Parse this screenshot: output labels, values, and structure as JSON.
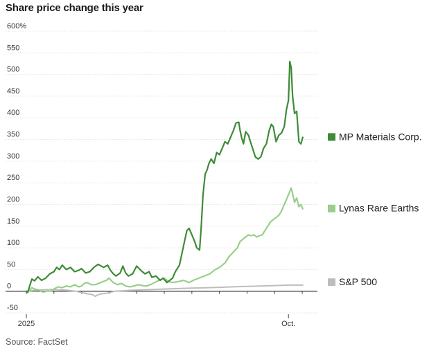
{
  "chart_data": {
    "type": "line",
    "title": "Share price change this year",
    "source": "Source: FactSet",
    "ylabel": "%",
    "ylim": [
      -50,
      600
    ],
    "y_ticks": [
      -50,
      0,
      50,
      100,
      150,
      200,
      250,
      300,
      350,
      400,
      450,
      500,
      550,
      600
    ],
    "y_tick_labels": [
      "-50",
      "0",
      "50",
      "100",
      "150",
      "200",
      "250",
      "300",
      "350",
      "400",
      "450",
      "500",
      "550",
      "600%"
    ],
    "x_unit": "months since Jan 1, 2025",
    "xlim": [
      0,
      10.55
    ],
    "x_ticks": [
      0,
      1,
      2,
      3,
      4,
      5,
      6,
      7,
      8,
      9,
      10
    ],
    "x_tick_labels": [
      {
        "x": 0,
        "label": "2025"
      },
      {
        "x": 9.5,
        "label": "Oct."
      }
    ],
    "series": [
      {
        "name": "MP Materials Corp.",
        "color": "#3d8b37",
        "points": [
          [
            0,
            0
          ],
          [
            0.05,
            -3
          ],
          [
            0.12,
            12
          ],
          [
            0.2,
            28
          ],
          [
            0.3,
            24
          ],
          [
            0.42,
            33
          ],
          [
            0.55,
            25
          ],
          [
            0.7,
            30
          ],
          [
            0.85,
            40
          ],
          [
            1,
            45
          ],
          [
            1.1,
            55
          ],
          [
            1.2,
            50
          ],
          [
            1.3,
            60
          ],
          [
            1.45,
            50
          ],
          [
            1.6,
            55
          ],
          [
            1.75,
            45
          ],
          [
            1.9,
            48
          ],
          [
            2,
            52
          ],
          [
            2.15,
            42
          ],
          [
            2.3,
            45
          ],
          [
            2.45,
            55
          ],
          [
            2.6,
            62
          ],
          [
            2.8,
            55
          ],
          [
            2.95,
            60
          ],
          [
            3.05,
            48
          ],
          [
            3.15,
            40
          ],
          [
            3.25,
            35
          ],
          [
            3.4,
            42
          ],
          [
            3.5,
            58
          ],
          [
            3.6,
            42
          ],
          [
            3.7,
            35
          ],
          [
            3.85,
            40
          ],
          [
            4,
            58
          ],
          [
            4.15,
            48
          ],
          [
            4.3,
            40
          ],
          [
            4.45,
            45
          ],
          [
            4.55,
            32
          ],
          [
            4.7,
            35
          ],
          [
            4.85,
            25
          ],
          [
            4.95,
            30
          ],
          [
            5.1,
            20
          ],
          [
            5.2,
            25
          ],
          [
            5.3,
            30
          ],
          [
            5.4,
            45
          ],
          [
            5.55,
            60
          ],
          [
            5.65,
            90
          ],
          [
            5.75,
            120
          ],
          [
            5.82,
            140
          ],
          [
            5.9,
            145
          ],
          [
            6,
            130
          ],
          [
            6.1,
            115
          ],
          [
            6.18,
            100
          ],
          [
            6.28,
            95
          ],
          [
            6.34,
            150
          ],
          [
            6.4,
            220
          ],
          [
            6.48,
            270
          ],
          [
            6.55,
            280
          ],
          [
            6.62,
            295
          ],
          [
            6.7,
            305
          ],
          [
            6.8,
            295
          ],
          [
            6.9,
            320
          ],
          [
            7,
            315
          ],
          [
            7.1,
            330
          ],
          [
            7.2,
            345
          ],
          [
            7.3,
            340
          ],
          [
            7.4,
            355
          ],
          [
            7.5,
            370
          ],
          [
            7.6,
            388
          ],
          [
            7.7,
            390
          ],
          [
            7.75,
            370
          ],
          [
            7.8,
            355
          ],
          [
            7.87,
            340
          ],
          [
            7.95,
            368
          ],
          [
            8.05,
            360
          ],
          [
            8.12,
            345
          ],
          [
            8.2,
            330
          ],
          [
            8.3,
            310
          ],
          [
            8.4,
            305
          ],
          [
            8.5,
            310
          ],
          [
            8.6,
            330
          ],
          [
            8.7,
            340
          ],
          [
            8.8,
            370
          ],
          [
            8.88,
            385
          ],
          [
            8.95,
            380
          ],
          [
            9.05,
            345
          ],
          [
            9.15,
            360
          ],
          [
            9.25,
            365
          ],
          [
            9.35,
            380
          ],
          [
            9.43,
            420
          ],
          [
            9.5,
            440
          ],
          [
            9.55,
            530
          ],
          [
            9.6,
            515
          ],
          [
            9.65,
            450
          ],
          [
            9.72,
            410
          ],
          [
            9.8,
            415
          ],
          [
            9.88,
            345
          ],
          [
            9.95,
            340
          ],
          [
            10.02,
            355
          ]
        ]
      },
      {
        "name": "Lynas Rare Earths",
        "color": "#98cf8a",
        "points": [
          [
            0,
            0
          ],
          [
            0.1,
            0
          ],
          [
            0.2,
            8
          ],
          [
            0.3,
            5
          ],
          [
            0.45,
            3
          ],
          [
            0.6,
            -2
          ],
          [
            0.75,
            0
          ],
          [
            0.9,
            0
          ],
          [
            1,
            5
          ],
          [
            1.15,
            10
          ],
          [
            1.3,
            8
          ],
          [
            1.45,
            12
          ],
          [
            1.6,
            10
          ],
          [
            1.75,
            15
          ],
          [
            1.9,
            10
          ],
          [
            2,
            12
          ],
          [
            2.1,
            18
          ],
          [
            2.2,
            20
          ],
          [
            2.35,
            15
          ],
          [
            2.5,
            15
          ],
          [
            2.7,
            20
          ],
          [
            2.9,
            25
          ],
          [
            3,
            30
          ],
          [
            3.15,
            20
          ],
          [
            3.3,
            15
          ],
          [
            3.45,
            18
          ],
          [
            3.6,
            12
          ],
          [
            3.75,
            10
          ],
          [
            3.9,
            12
          ],
          [
            4.05,
            15
          ],
          [
            4.2,
            13
          ],
          [
            4.35,
            12
          ],
          [
            4.5,
            15
          ],
          [
            4.65,
            20
          ],
          [
            4.8,
            25
          ],
          [
            5,
            30
          ],
          [
            5.15,
            22
          ],
          [
            5.3,
            20
          ],
          [
            5.5,
            22
          ],
          [
            5.7,
            25
          ],
          [
            5.9,
            20
          ],
          [
            6.05,
            25
          ],
          [
            6.25,
            30
          ],
          [
            6.45,
            35
          ],
          [
            6.65,
            40
          ],
          [
            6.85,
            50
          ],
          [
            7,
            55
          ],
          [
            7.2,
            65
          ],
          [
            7.35,
            80
          ],
          [
            7.5,
            90
          ],
          [
            7.65,
            100
          ],
          [
            7.75,
            115
          ],
          [
            7.85,
            120
          ],
          [
            7.95,
            125
          ],
          [
            8.05,
            130
          ],
          [
            8.15,
            128
          ],
          [
            8.25,
            130
          ],
          [
            8.35,
            125
          ],
          [
            8.45,
            128
          ],
          [
            8.55,
            130
          ],
          [
            8.65,
            140
          ],
          [
            8.75,
            150
          ],
          [
            8.85,
            160
          ],
          [
            8.95,
            165
          ],
          [
            9.05,
            170
          ],
          [
            9.15,
            175
          ],
          [
            9.25,
            185
          ],
          [
            9.35,
            200
          ],
          [
            9.45,
            215
          ],
          [
            9.55,
            230
          ],
          [
            9.6,
            238
          ],
          [
            9.65,
            225
          ],
          [
            9.72,
            205
          ],
          [
            9.8,
            215
          ],
          [
            9.88,
            195
          ],
          [
            9.95,
            200
          ],
          [
            10.02,
            190
          ]
        ]
      },
      {
        "name": "S&P 500",
        "color": "#bdbdbd",
        "points": [
          [
            0,
            0
          ],
          [
            0.3,
            2
          ],
          [
            0.6,
            3
          ],
          [
            0.9,
            4
          ],
          [
            1.2,
            3
          ],
          [
            1.5,
            2
          ],
          [
            1.8,
            0
          ],
          [
            2,
            -3
          ],
          [
            2.2,
            -6
          ],
          [
            2.4,
            -8
          ],
          [
            2.5,
            -12
          ],
          [
            2.6,
            -8
          ],
          [
            2.75,
            -6
          ],
          [
            2.9,
            -5
          ],
          [
            3,
            -3
          ],
          [
            3.2,
            0
          ],
          [
            3.5,
            1
          ],
          [
            3.8,
            2
          ],
          [
            4.2,
            3
          ],
          [
            4.6,
            4
          ],
          [
            5,
            5
          ],
          [
            5.5,
            6
          ],
          [
            6,
            7
          ],
          [
            6.5,
            8
          ],
          [
            7,
            9
          ],
          [
            7.5,
            10
          ],
          [
            8,
            11
          ],
          [
            8.5,
            12
          ],
          [
            9,
            13
          ],
          [
            9.5,
            14
          ],
          [
            10.02,
            14
          ]
        ]
      }
    ],
    "legend": [
      {
        "label": "MP Materials Corp.",
        "color": "#3d8b37"
      },
      {
        "label": "Lynas Rare Earths",
        "color": "#98cf8a"
      },
      {
        "label": "S&P 500",
        "color": "#bdbdbd"
      }
    ]
  }
}
